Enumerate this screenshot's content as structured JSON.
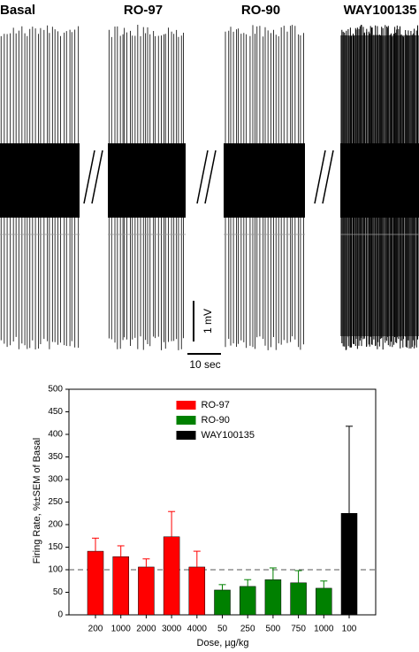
{
  "recording": {
    "labels": [
      "Basal",
      "RO-97",
      "RO-90",
      "WAY100135"
    ],
    "scale_voltage": "1 mV",
    "scale_time": "10 sec"
  },
  "chart_data": {
    "type": "bar",
    "ylabel": "Firing Rate, %±SEM of Basal",
    "xlabel": "Dose, µg/kg",
    "categories": [
      "200",
      "1000",
      "2000",
      "3000",
      "4000",
      "50",
      "250",
      "500",
      "750",
      "1000",
      "100"
    ],
    "series": [
      {
        "name": "RO-97",
        "color": "#ff0000",
        "values": [
          141,
          129,
          106,
          173,
          106,
          null,
          null,
          null,
          null,
          null,
          null
        ],
        "errors": [
          29,
          24,
          18,
          56,
          35,
          null,
          null,
          null,
          null,
          null,
          null
        ]
      },
      {
        "name": "RO-90",
        "color": "#008000",
        "values": [
          null,
          null,
          null,
          null,
          null,
          55,
          63,
          78,
          71,
          59,
          null
        ],
        "errors": [
          null,
          null,
          null,
          null,
          null,
          12,
          15,
          26,
          27,
          16,
          null
        ]
      },
      {
        "name": "WAY100135",
        "color": "#000000",
        "values": [
          null,
          null,
          null,
          null,
          null,
          null,
          null,
          null,
          null,
          null,
          225
        ],
        "errors": [
          null,
          null,
          null,
          null,
          null,
          null,
          null,
          null,
          null,
          null,
          193
        ]
      }
    ],
    "ylim": [
      0,
      500
    ],
    "yticks": [
      0,
      50,
      100,
      150,
      200,
      250,
      300,
      350,
      400,
      450,
      500
    ],
    "reference_line": 100,
    "legend": "upper center"
  }
}
